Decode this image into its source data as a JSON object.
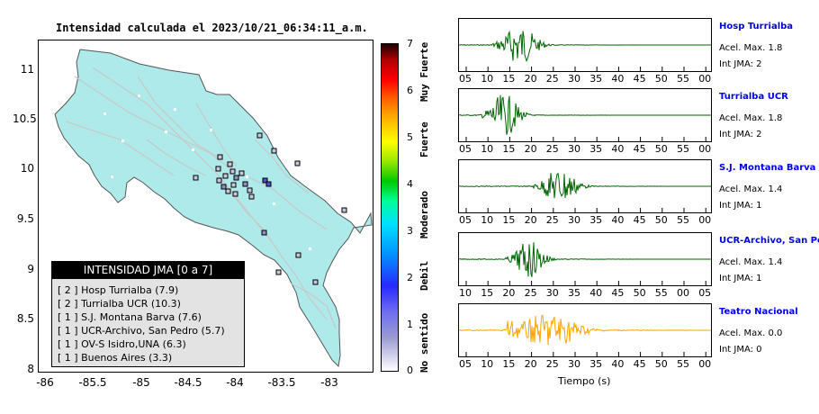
{
  "map": {
    "title": "Intensidad calculada el 2023/10/21_06:34:11_a.m.",
    "y_ticks": [
      "11",
      "10.5",
      "10",
      "9.5",
      "9",
      "8.5",
      "8"
    ],
    "x_ticks": [
      "-86",
      "-85.5",
      "-85",
      "-84.5",
      "-84",
      "-83.5",
      "-83"
    ],
    "land_color": "#aeeaea",
    "legend": {
      "header": "INTENSIDAD JMA [0 a 7]",
      "items": [
        "[ 2 ]  Hosp Turrialba (7.9)",
        "[ 2 ]  Turrialba UCR (10.3)",
        "[ 1 ]  S.J. Montana Barva (7.6)",
        "[ 1 ]  UCR-Archivo, San Pedro (5.7)",
        "[ 1 ]  OV-S Isidro,UNA (6.3)",
        "[ 1 ]  Buenos Aires (3.3)"
      ]
    }
  },
  "colorbar": {
    "ticks": [
      "7",
      "6",
      "5",
      "4",
      "3",
      "2",
      "1",
      "0"
    ],
    "labels": [
      "Muy Fuerte",
      "Fuerte",
      "Moderado",
      "Debil",
      "No sentido"
    ]
  },
  "waveforms": {
    "x_label": "Tiempo (s)",
    "panels": [
      {
        "name": "Hosp Turrialba",
        "accel": "Acel. Max. 1.8",
        "jma": "Int JMA: 2",
        "color": "#006400",
        "ticks": [
          "05",
          "10",
          "15",
          "20",
          "25",
          "30",
          "35",
          "40",
          "45",
          "50",
          "55",
          "00"
        ]
      },
      {
        "name": "Turrialba UCR",
        "accel": "Acel. Max. 1.8",
        "jma": "Int JMA: 2",
        "color": "#006400",
        "ticks": [
          "05",
          "10",
          "15",
          "20",
          "25",
          "30",
          "35",
          "40",
          "45",
          "50",
          "55",
          "00"
        ]
      },
      {
        "name": "S.J. Montana Barva",
        "accel": "Acel. Max. 1.4",
        "jma": "Int JMA: 1",
        "color": "#006400",
        "ticks": [
          "05",
          "10",
          "15",
          "20",
          "25",
          "30",
          "35",
          "40",
          "45",
          "50",
          "55",
          "00"
        ]
      },
      {
        "name": "UCR-Archivo, San Pedro",
        "accel": "Acel. Max. 1.4",
        "jma": "Int JMA: 1",
        "color": "#006400",
        "ticks": [
          "10",
          "15",
          "20",
          "25",
          "30",
          "35",
          "40",
          "45",
          "50",
          "55",
          "00",
          "05"
        ]
      },
      {
        "name": "Teatro Nacional",
        "accel": "Acel. Max. 0.0",
        "jma": "Int JMA: 0",
        "color": "#ffa500",
        "ticks": [
          "05",
          "10",
          "15",
          "20",
          "25",
          "30",
          "35",
          "40",
          "45",
          "50",
          "55",
          "00"
        ]
      }
    ]
  }
}
